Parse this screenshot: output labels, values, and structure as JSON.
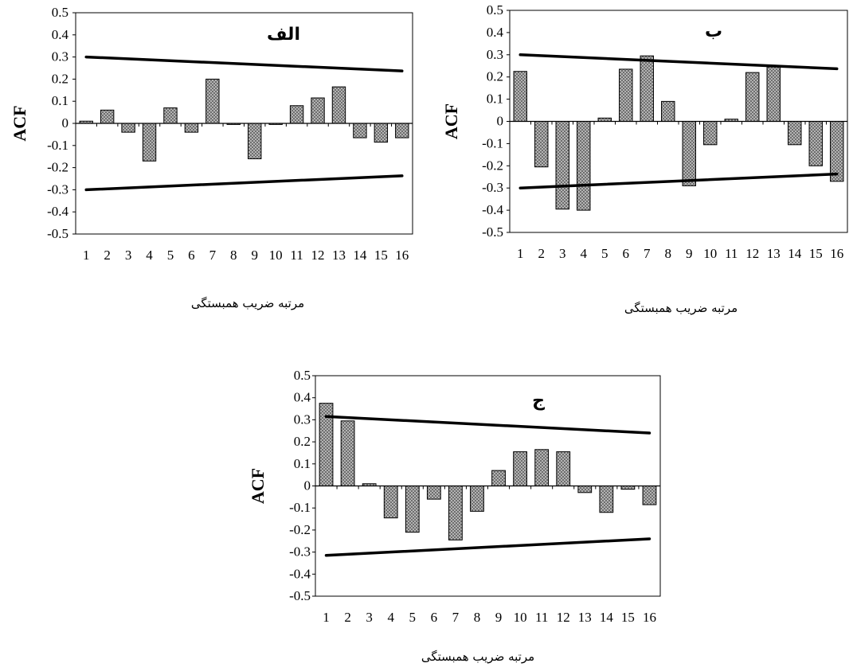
{
  "chart_data": [
    {
      "type": "bar",
      "title": "الف",
      "xlabel": "مرتبه ضریب همبستگی",
      "ylabel": "ACF",
      "ylim": [
        -0.5,
        0.5
      ],
      "yticks": [
        "0.5",
        "0.4",
        "0.3",
        "0.2",
        "0.1",
        "0",
        "-0.1",
        "-0.2",
        "-0.3",
        "-0.4",
        "-0.5"
      ],
      "categories": [
        "1",
        "2",
        "3",
        "4",
        "5",
        "6",
        "7",
        "8",
        "9",
        "10",
        "11",
        "12",
        "13",
        "14",
        "15",
        "16"
      ],
      "values": [
        0.01,
        0.06,
        -0.04,
        -0.17,
        0.07,
        -0.04,
        0.2,
        -0.005,
        -0.16,
        -0.005,
        0.08,
        0.115,
        0.165,
        -0.065,
        -0.085,
        -0.065
      ],
      "bounds": {
        "upper": [
          0.3,
          0.237
        ],
        "lower": [
          -0.3,
          -0.237
        ]
      },
      "bar_color": "#a8a8a8",
      "line_color": "#000000"
    },
    {
      "type": "bar",
      "title": "ب",
      "xlabel": "مرتبه ضریب همبستگی",
      "ylabel": "ACF",
      "ylim": [
        -0.5,
        0.5
      ],
      "yticks": [
        "0.5",
        "0.4",
        "0.3",
        "0.2",
        "0.1",
        "0",
        "-0.1",
        "-0.2",
        "-0.3",
        "-0.4",
        "-0.5"
      ],
      "categories": [
        "1",
        "2",
        "3",
        "4",
        "5",
        "6",
        "7",
        "8",
        "9",
        "10",
        "11",
        "12",
        "13",
        "14",
        "15",
        "16"
      ],
      "values": [
        0.225,
        -0.205,
        -0.395,
        -0.4,
        0.015,
        0.235,
        0.295,
        0.09,
        -0.29,
        -0.105,
        0.01,
        0.22,
        0.245,
        -0.105,
        -0.2,
        -0.27
      ],
      "bounds": {
        "upper": [
          0.3,
          0.237
        ],
        "lower": [
          -0.3,
          -0.237
        ]
      },
      "bar_color": "#a8a8a8",
      "line_color": "#000000"
    },
    {
      "type": "bar",
      "title": "ج",
      "xlabel": "مرتبه ضریب همبستگی",
      "ylabel": "ACF",
      "ylim": [
        -0.5,
        0.5
      ],
      "yticks": [
        "0.5",
        "0.4",
        "0.3",
        "0.2",
        "0.1",
        "0",
        "-0.1",
        "-0.2",
        "-0.3",
        "-0.4",
        "-0.5"
      ],
      "categories": [
        "1",
        "2",
        "3",
        "4",
        "5",
        "6",
        "7",
        "8",
        "9",
        "10",
        "11",
        "12",
        "13",
        "14",
        "15",
        "16"
      ],
      "values": [
        0.375,
        0.295,
        0.01,
        -0.145,
        -0.21,
        -0.06,
        -0.245,
        -0.115,
        0.07,
        0.155,
        0.165,
        0.155,
        -0.03,
        -0.12,
        -0.015,
        -0.085
      ],
      "bounds": {
        "upper": [
          0.315,
          0.24
        ],
        "lower": [
          -0.315,
          -0.24
        ]
      },
      "bar_color": "#a8a8a8",
      "line_color": "#000000"
    }
  ]
}
